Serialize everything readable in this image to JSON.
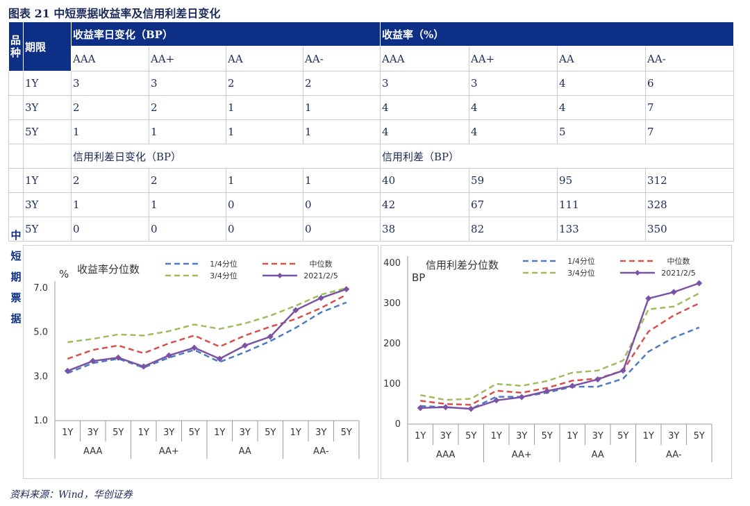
{
  "title": "图表 21   中短票据收益率及信用利差日变化",
  "side_label": "中短期票据",
  "source": "资料来源：Wind，华创证券",
  "colors": {
    "header_bg": "#0e2f86",
    "q1": "#4a7cc4",
    "median": "#d6504a",
    "q3": "#9cbd5c",
    "latest": "#7b52a4"
  },
  "table": {
    "col_pinzhong": "品种",
    "col_qixian": "期限",
    "group1": "收益率日变化（BP）",
    "group2": "收益率（%）",
    "ratings": [
      "AAA",
      "AA+",
      "AA",
      "AA-",
      "AAA",
      "AA+",
      "AA",
      "AA-"
    ],
    "rows1": [
      {
        "term": "1Y",
        "vals": [
          "3",
          "3",
          "2",
          "2",
          "3",
          "3",
          "4",
          "6"
        ]
      },
      {
        "term": "3Y",
        "vals": [
          "2",
          "2",
          "1",
          "1",
          "4",
          "4",
          "4",
          "7"
        ]
      },
      {
        "term": "5Y",
        "vals": [
          "1",
          "1",
          "1",
          "1",
          "4",
          "4",
          "5",
          "7"
        ]
      }
    ],
    "group3": "信用利差日变化（BP）",
    "group4": "信用利差（BP）",
    "rows2": [
      {
        "term": "1Y",
        "vals": [
          "2",
          "2",
          "1",
          "1",
          "40",
          "59",
          "95",
          "312"
        ]
      },
      {
        "term": "3Y",
        "vals": [
          "1",
          "1",
          "0",
          "0",
          "42",
          "67",
          "111",
          "328"
        ]
      },
      {
        "term": "5Y",
        "vals": [
          "0",
          "0",
          "0",
          "0",
          "38",
          "82",
          "133",
          "350"
        ]
      }
    ]
  },
  "chart_data": [
    {
      "type": "line",
      "title": "收益率分位数",
      "ylabel": "%",
      "ylim": [
        1.0,
        7.0
      ],
      "yticks": [
        "1.0",
        "3.0",
        "5.0",
        "7.0"
      ],
      "categories": [
        "1Y",
        "3Y",
        "5Y",
        "1Y",
        "3Y",
        "5Y",
        "1Y",
        "3Y",
        "5Y",
        "1Y",
        "3Y",
        "5Y"
      ],
      "groups": [
        "AAA",
        "AA+",
        "AA",
        "AA-"
      ],
      "series": [
        {
          "name": "1/4分位",
          "style": "dashed",
          "color": "#4a7cc4",
          "values": [
            3.15,
            3.6,
            3.8,
            3.4,
            3.85,
            4.2,
            3.65,
            4.1,
            4.6,
            5.2,
            5.9,
            6.35
          ]
        },
        {
          "name": "中位数",
          "style": "dashed",
          "color": "#d6504a",
          "values": [
            3.8,
            4.2,
            4.4,
            4.05,
            4.5,
            4.85,
            4.35,
            4.85,
            5.25,
            5.6,
            6.1,
            6.7
          ]
        },
        {
          "name": "3/4分位",
          "style": "dashed",
          "color": "#9cbd5c",
          "values": [
            4.55,
            4.7,
            4.9,
            4.85,
            5.05,
            5.35,
            5.15,
            5.4,
            5.75,
            6.2,
            6.7,
            7.0
          ]
        },
        {
          "name": "2021/2/5",
          "style": "solid",
          "color": "#7b52a4",
          "values": [
            3.25,
            3.7,
            3.85,
            3.45,
            3.95,
            4.3,
            3.8,
            4.4,
            4.8,
            6.0,
            6.55,
            6.95
          ]
        }
      ]
    },
    {
      "type": "line",
      "title": "信用利差分位数",
      "ylabel": "BP",
      "ylim": [
        0,
        400
      ],
      "yticks": [
        "0",
        "100",
        "200",
        "300",
        "400"
      ],
      "categories": [
        "1Y",
        "3Y",
        "5Y",
        "1Y",
        "3Y",
        "5Y",
        "1Y",
        "3Y",
        "5Y",
        "1Y",
        "3Y",
        "5Y"
      ],
      "groups": [
        "AAA",
        "AA+",
        "AA",
        "AA-"
      ],
      "series": [
        {
          "name": "1/4分位",
          "style": "dashed",
          "color": "#4a7cc4",
          "values": [
            45,
            42,
            38,
            68,
            68,
            78,
            93,
            93,
            113,
            180,
            215,
            240
          ]
        },
        {
          "name": "中位数",
          "style": "dashed",
          "color": "#d6504a",
          "values": [
            58,
            50,
            48,
            83,
            78,
            90,
            108,
            113,
            133,
            230,
            270,
            300
          ]
        },
        {
          "name": "3/4分位",
          "style": "dashed",
          "color": "#9cbd5c",
          "values": [
            72,
            60,
            63,
            100,
            95,
            107,
            128,
            133,
            158,
            285,
            292,
            325
          ]
        },
        {
          "name": "2021/2/5",
          "style": "solid",
          "color": "#7b52a4",
          "values": [
            40,
            42,
            38,
            59,
            67,
            82,
            95,
            111,
            133,
            312,
            328,
            350
          ]
        }
      ]
    }
  ]
}
